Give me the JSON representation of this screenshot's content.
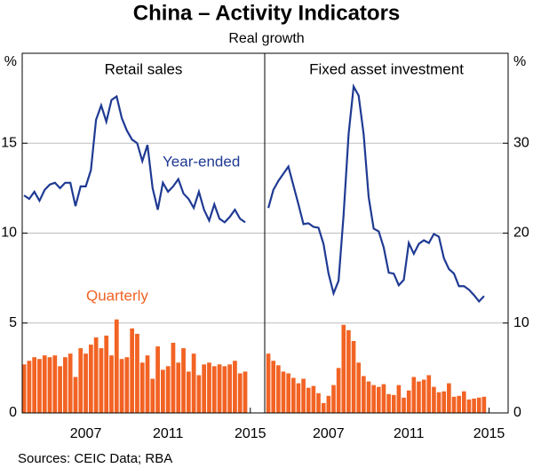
{
  "title": "China – Activity Indicators",
  "subtitle": "Real growth",
  "source": "Sources:   CEIC Data; RBA",
  "chart_data": [
    {
      "type": "bar-line",
      "title": "Retail sales",
      "y_label": "%",
      "axis_side": "left",
      "xlim": [
        2003.91,
        2015.7
      ],
      "xticks": [
        2007,
        2011,
        2015
      ],
      "ylim": [
        0,
        20
      ],
      "yticks": [
        0,
        5,
        10,
        15
      ],
      "grid": true,
      "x": [
        2004,
        2004.25,
        2004.5,
        2004.75,
        2005,
        2005.25,
        2005.5,
        2005.75,
        2006,
        2006.25,
        2006.5,
        2006.75,
        2007,
        2007.25,
        2007.5,
        2007.75,
        2008,
        2008.25,
        2008.5,
        2008.75,
        2009,
        2009.25,
        2009.5,
        2009.75,
        2010,
        2010.25,
        2010.5,
        2010.75,
        2011,
        2011.25,
        2011.5,
        2011.75,
        2012,
        2012.25,
        2012.5,
        2012.75,
        2013,
        2013.25,
        2013.5,
        2013.75,
        2014,
        2014.25,
        2014.5,
        2014.75
      ],
      "series": [
        {
          "name": "Year-ended",
          "type": "line",
          "color": "#1f3a93",
          "values": [
            12.1,
            11.9,
            12.3,
            11.8,
            12.4,
            12.7,
            12.8,
            12.5,
            12.8,
            12.8,
            11.5,
            12.6,
            12.6,
            13.5,
            16.3,
            17.1,
            16.2,
            17.4,
            17.6,
            16.4,
            15.7,
            15.2,
            15.0,
            14.0,
            14.9,
            12.5,
            11.3,
            12.8,
            12.3,
            12.6,
            13.0,
            12.2,
            11.9,
            11.4,
            12.3,
            11.3,
            10.7,
            11.6,
            10.8,
            10.6,
            10.9,
            11.3,
            10.8,
            10.6
          ]
        },
        {
          "name": "Quarterly",
          "type": "bar",
          "color": "#f26324",
          "values": [
            2.7,
            2.9,
            3.1,
            3.0,
            3.2,
            3.1,
            3.2,
            2.6,
            3.1,
            3.3,
            2.0,
            3.6,
            3.3,
            3.8,
            4.2,
            3.6,
            4.3,
            3.2,
            5.2,
            3.0,
            3.1,
            4.7,
            4.4,
            2.8,
            3.2,
            1.9,
            3.7,
            2.4,
            2.6,
            3.9,
            2.8,
            3.6,
            2.3,
            3.3,
            2.1,
            2.7,
            2.8,
            2.6,
            2.7,
            2.6,
            2.7,
            2.9,
            2.2,
            2.3
          ]
        }
      ]
    },
    {
      "type": "bar-line",
      "title": "Fixed asset investment",
      "y_label": "%",
      "axis_side": "right",
      "xlim": [
        2003.82,
        2015.95
      ],
      "xticks": [
        2007,
        2011,
        2015
      ],
      "ylim": [
        0,
        40
      ],
      "yticks": [
        0,
        10,
        20,
        30
      ],
      "grid": true,
      "x": [
        2004,
        2004.25,
        2004.5,
        2004.75,
        2005,
        2005.25,
        2005.5,
        2005.75,
        2006,
        2006.25,
        2006.5,
        2006.75,
        2007,
        2007.25,
        2007.5,
        2007.75,
        2008,
        2008.25,
        2008.5,
        2008.75,
        2009,
        2009.25,
        2009.5,
        2009.75,
        2010,
        2010.25,
        2010.5,
        2010.75,
        2011,
        2011.25,
        2011.5,
        2011.75,
        2012,
        2012.25,
        2012.5,
        2012.75,
        2013,
        2013.25,
        2013.5,
        2013.75,
        2014,
        2014.25,
        2014.5,
        2014.75
      ],
      "series": [
        {
          "type": "line",
          "color": "#1f3a93",
          "values": [
            22.8,
            24.8,
            25.8,
            26.6,
            27.4,
            25.3,
            23.2,
            21.0,
            21.1,
            20.7,
            20.6,
            18.8,
            15.5,
            13.3,
            14.7,
            22.0,
            31.0,
            36.3,
            35.3,
            31.0,
            24.0,
            20.5,
            20.2,
            18.4,
            15.6,
            15.5,
            14.2,
            14.8,
            18.9,
            17.7,
            18.8,
            19.2,
            18.9,
            19.9,
            19.6,
            17.2,
            16.0,
            15.5,
            14.1,
            14.1,
            13.7,
            13.1,
            12.4,
            13.0
          ]
        },
        {
          "type": "bar",
          "color": "#f26324",
          "values": [
            6.6,
            5.8,
            5.3,
            4.6,
            4.4,
            3.9,
            3.3,
            3.8,
            2.8,
            3.0,
            2.2,
            1.1,
            1.9,
            3.1,
            5.0,
            9.8,
            9.2,
            8.0,
            5.6,
            4.1,
            3.5,
            3.1,
            2.9,
            3.2,
            2.1,
            2.0,
            3.1,
            1.7,
            2.5,
            4.0,
            3.5,
            3.7,
            4.2,
            2.9,
            2.3,
            2.4,
            3.3,
            1.8,
            1.9,
            2.4,
            1.5,
            1.6,
            1.7,
            1.8
          ]
        }
      ]
    }
  ]
}
